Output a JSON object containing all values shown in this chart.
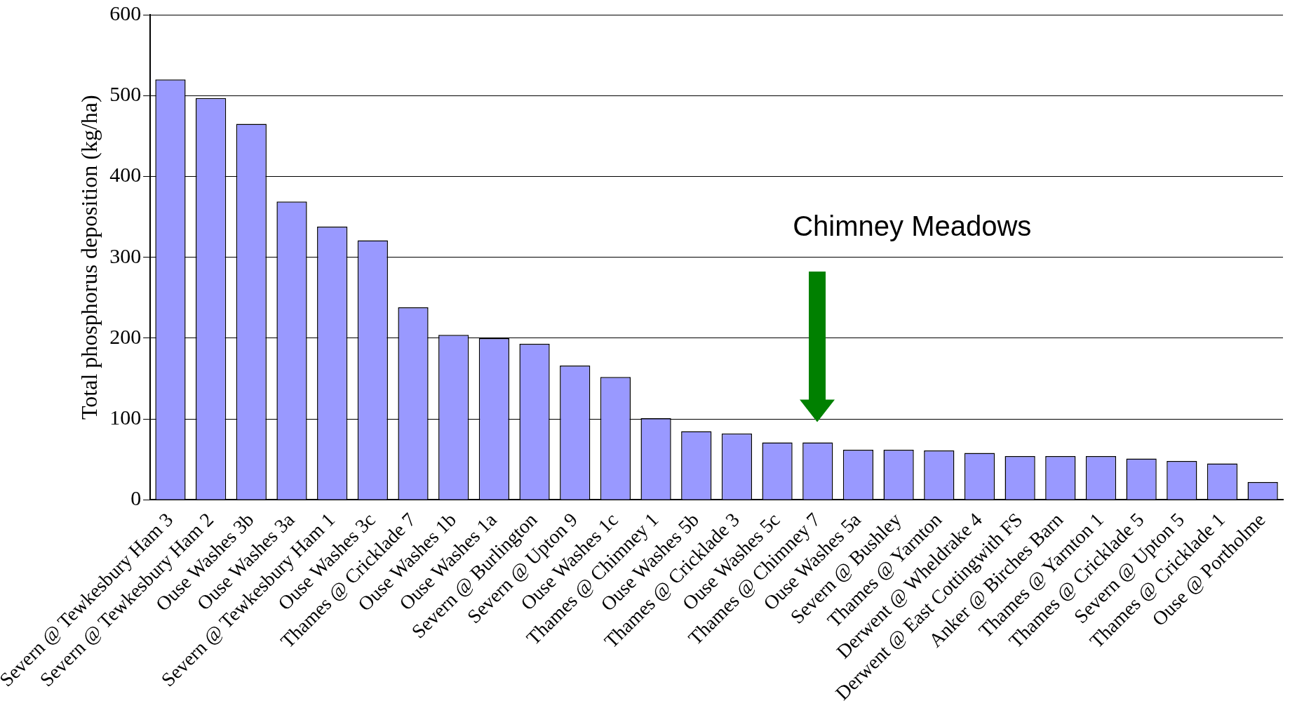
{
  "chart_data": {
    "type": "bar",
    "ylabel": "Total phosphorus deposition (kg/ha)",
    "categories": [
      "Severn @ Tewkesbury Ham 3",
      "Severn @ Tewkesbury Ham 2",
      "Ouse Washes 3b",
      "Ouse Washes 3a",
      "Severn @ Tewkesbury Ham 1",
      "Ouse Washes 3c",
      "Thames @ Cricklade 7",
      "Ouse Washes 1b",
      "Ouse Washes 1a",
      "Severn @ Burlington",
      "Severn @ Upton 9",
      "Ouse Washes 1c",
      "Thames @ Chimney 1",
      "Ouse Washes 5b",
      "Thames @ Cricklade 3",
      "Ouse Washes 5c",
      "Thames @ Chimney 7",
      "Ouse Washes 5a",
      "Severn @ Bushley",
      "Thames @ Yarnton",
      "Derwent @ Wheldrake 4",
      "Derwent @ East Cottingwith FS",
      "Anker @ Birches Barn",
      "Thames @ Yarnton 1",
      "Thames @ Cricklade 5",
      "Severn @ Upton 5",
      "Thames @ Cricklade 1",
      "Ouse @ Portholme"
    ],
    "values": [
      520,
      497,
      465,
      369,
      338,
      321,
      238,
      204,
      200,
      193,
      166,
      152,
      101,
      85,
      82,
      71,
      71,
      62,
      62,
      61,
      58,
      54,
      54,
      54,
      51,
      48,
      45,
      22
    ],
    "color": "#9999ff",
    "ylim": [
      0,
      600
    ],
    "yticks": [
      0,
      100,
      200,
      300,
      400,
      500,
      600
    ],
    "grid": "y",
    "annotations": [
      "Chimney Meadows"
    ]
  }
}
